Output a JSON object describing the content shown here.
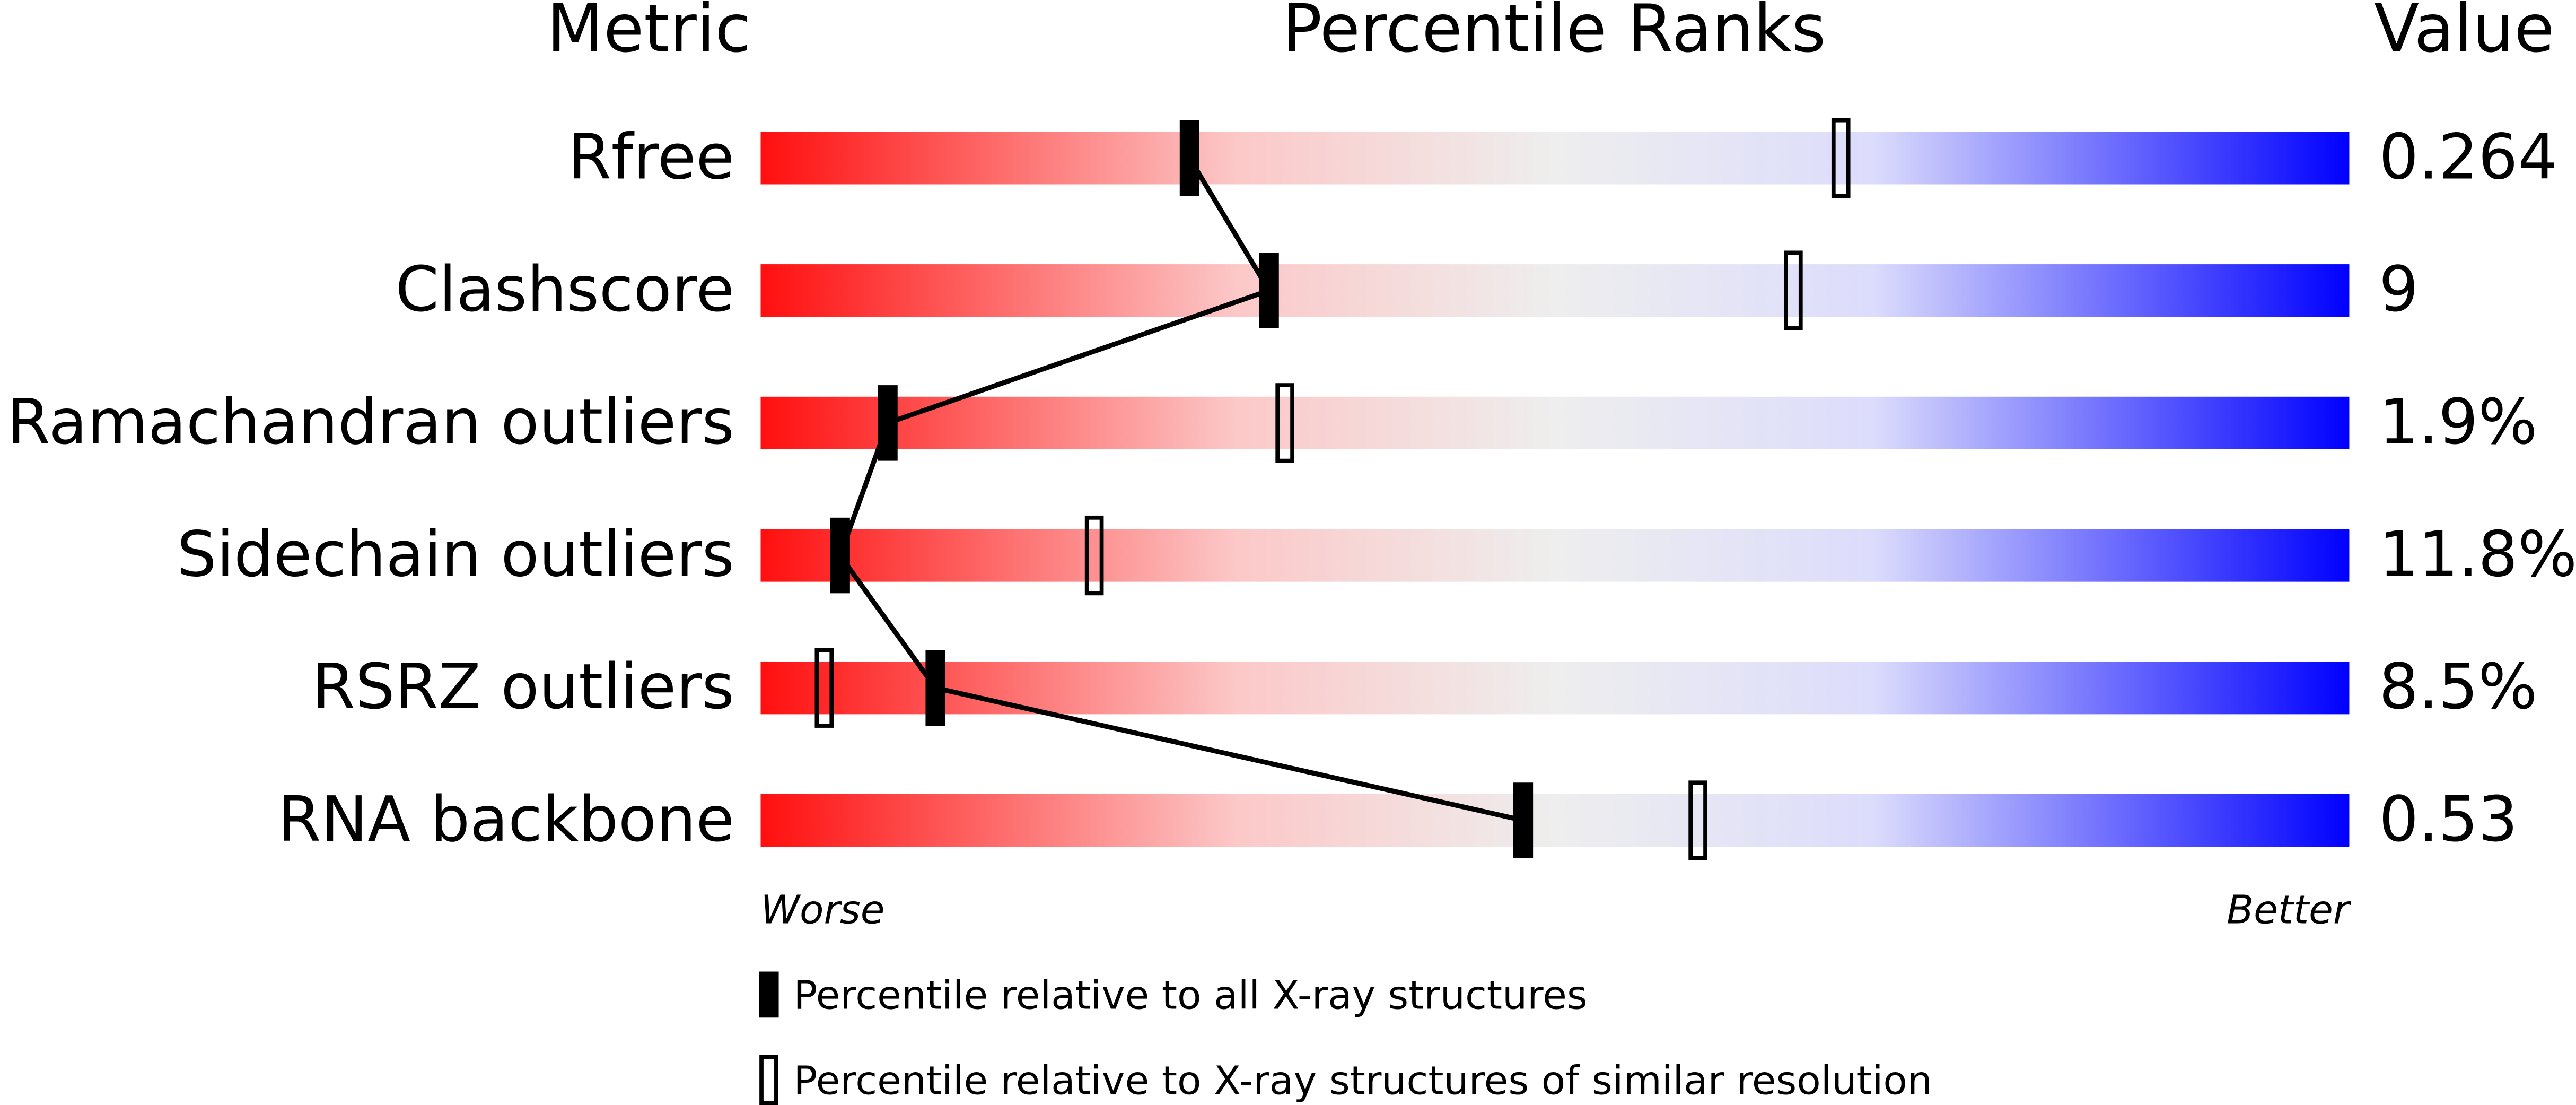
{
  "chart_data": {
    "type": "percentile",
    "title": "Percentile Ranks",
    "metric_header": "Metric",
    "value_header": "Value",
    "categories": [
      "Rfree",
      "Clashscore",
      "Ramachandran outliers",
      "Sidechain outliers",
      "RSRZ outliers",
      "RNA backbone"
    ],
    "metric_values": [
      "0.264",
      "9",
      "1.9%",
      "11.8%",
      "8.5%",
      "0.53"
    ],
    "series": [
      {
        "name": "Percentile relative to all X-ray structures",
        "style": "filled",
        "color": "#000000",
        "values": [
          27,
          32,
          8,
          5,
          11,
          48
        ]
      },
      {
        "name": "Percentile relative to X-ray structures of similar resolution",
        "style": "open",
        "color": "#000000",
        "values": [
          68,
          65,
          33,
          21,
          4,
          59
        ]
      }
    ],
    "xlim": [
      0,
      100
    ],
    "worse_label": "Worse",
    "better_label": "Better",
    "gradient": [
      "#ff0f0f",
      "#fcc8c8",
      "#eeeeee",
      "#dcdcfc",
      "#0000ff"
    ]
  }
}
